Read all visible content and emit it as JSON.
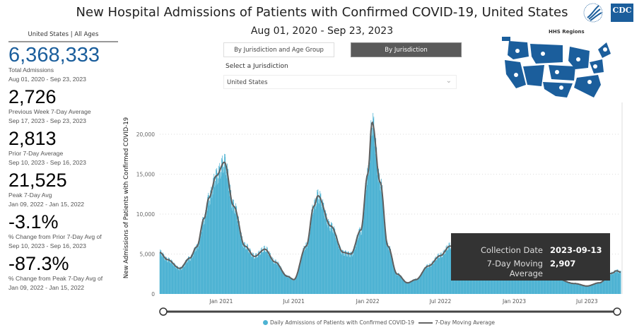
{
  "header": {
    "title": "New Hospital Admissions of Patients with Confirmed COVID-19, United States",
    "subtitle": "Aug 01, 2020 - Sep 23, 2023",
    "logo_text": "CDC"
  },
  "left_panel": {
    "heading": "United States | All Ages",
    "stats": [
      {
        "value": "6,368,333",
        "label": "Total Admissions",
        "range": "Aug 01, 2020 - Sep 23, 2023"
      },
      {
        "value": "2,726",
        "label": "Previous Week 7-Day Average",
        "range": "Sep 17, 2023 - Sep 23, 2023"
      },
      {
        "value": "2,813",
        "label": "Prior 7-Day Average",
        "range": "Sep 10, 2023 - Sep 16, 2023"
      },
      {
        "value": "21,525",
        "label": "Peak 7-Day Avg",
        "range": "Jan 09, 2022 - Jan 15, 2022"
      },
      {
        "value": "-3.1%",
        "label": "% Change from Prior 7-Day Avg of",
        "range": "Sep 10, 2023 - Sep 16, 2023"
      },
      {
        "value": "-87.3%",
        "label": "% Change from Peak 7-Day Avg of",
        "range": "Jan 09, 2022 - Jan 15, 2022"
      }
    ]
  },
  "controls": {
    "tab_age": "By Jurisdiction and Age Group",
    "tab_jurisdiction": "By Jurisdiction",
    "active_tab": "By Jurisdiction",
    "select_label": "Select a Jurisdiction",
    "select_value": "United States"
  },
  "map": {
    "title": "HHS Regions"
  },
  "tooltip": {
    "k1": "Collection Date",
    "v1": "2023-09-13",
    "k2": "7-Day Moving Average",
    "v2": "2,907"
  },
  "chart_data": {
    "type": "bar+line",
    "ylabel": "New Admissions of Patients with Confirmed COVID-19",
    "ylim": [
      0,
      22500
    ],
    "yticks": [
      0,
      5000,
      10000,
      15000,
      20000
    ],
    "ytick_labels": [
      "0",
      "5,000",
      "10,000",
      "15,000",
      "20,000"
    ],
    "xlim": [
      "2020-08-01",
      "2023-09-23"
    ],
    "xticks": [
      "2021-01-01",
      "2021-07-01",
      "2022-01-01",
      "2022-07-01",
      "2023-01-01",
      "2023-07-01"
    ],
    "xtick_labels": [
      "Jan 2021",
      "Jul 2021",
      "Jan 2022",
      "Jul 2022",
      "Jan 2023",
      "Jul 2023"
    ],
    "grid": true,
    "legend_position": "bottom",
    "colors": {
      "bars": "#4eb3d3",
      "line": "#5f5f5f"
    },
    "series": [
      {
        "name": "Daily Admissions of Patients with Confirmed COVID-19",
        "type": "bar"
      },
      {
        "name": "7-Day Moving Average",
        "type": "line",
        "points": [
          [
            "2020-08-01",
            5200
          ],
          [
            "2020-08-20",
            4300
          ],
          [
            "2020-09-20",
            3200
          ],
          [
            "2020-10-15",
            4500
          ],
          [
            "2020-11-01",
            5900
          ],
          [
            "2020-11-20",
            9500
          ],
          [
            "2020-12-01",
            12000
          ],
          [
            "2020-12-20",
            14800
          ],
          [
            "2021-01-09",
            16500
          ],
          [
            "2021-02-01",
            11000
          ],
          [
            "2021-03-01",
            6000
          ],
          [
            "2021-03-25",
            4700
          ],
          [
            "2021-04-20",
            5600
          ],
          [
            "2021-05-15",
            4000
          ],
          [
            "2021-06-15",
            2200
          ],
          [
            "2021-07-01",
            1800
          ],
          [
            "2021-08-01",
            6000
          ],
          [
            "2021-08-20",
            11000
          ],
          [
            "2021-08-30",
            12300
          ],
          [
            "2021-10-01",
            8500
          ],
          [
            "2021-11-01",
            5200
          ],
          [
            "2021-11-20",
            5000
          ],
          [
            "2021-12-15",
            8000
          ],
          [
            "2022-01-01",
            15000
          ],
          [
            "2022-01-12",
            21525
          ],
          [
            "2022-02-01",
            14000
          ],
          [
            "2022-02-20",
            6000
          ],
          [
            "2022-03-15",
            2500
          ],
          [
            "2022-04-10",
            1400
          ],
          [
            "2022-05-01",
            1800
          ],
          [
            "2022-06-01",
            3500
          ],
          [
            "2022-07-01",
            4800
          ],
          [
            "2022-07-25",
            6000
          ],
          [
            "2022-08-15",
            5500
          ],
          [
            "2022-10-01",
            3800
          ],
          [
            "2022-11-01",
            4200
          ],
          [
            "2022-12-20",
            6800
          ],
          [
            "2023-01-05",
            6500
          ],
          [
            "2023-02-15",
            3500
          ],
          [
            "2023-04-01",
            2200
          ],
          [
            "2023-06-01",
            1300
          ],
          [
            "2023-07-01",
            1000
          ],
          [
            "2023-08-01",
            1400
          ],
          [
            "2023-09-01",
            2600
          ],
          [
            "2023-09-13",
            2907
          ],
          [
            "2023-09-23",
            2726
          ]
        ]
      }
    ]
  }
}
